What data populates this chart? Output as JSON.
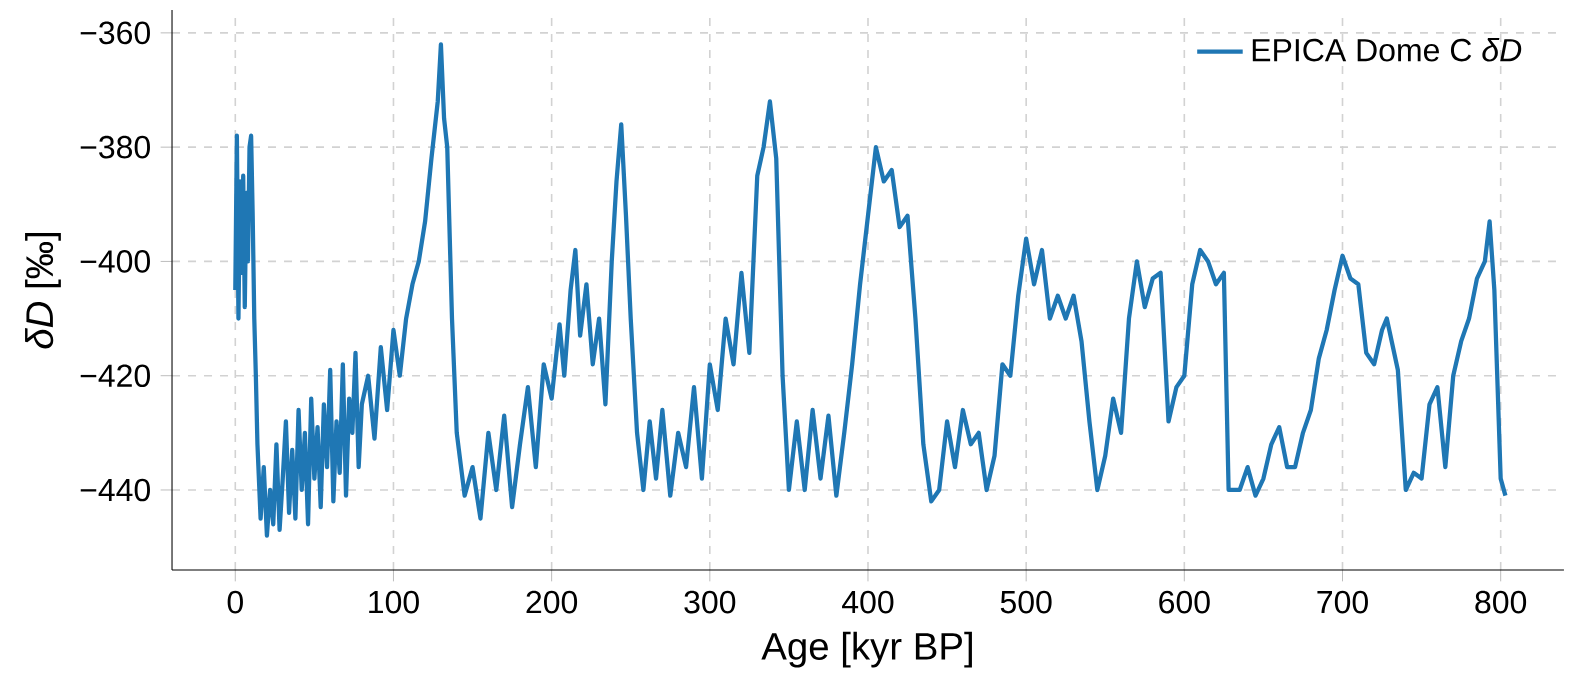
{
  "chart_data": {
    "type": "line",
    "xlabel": "Age [kyr BP]",
    "ylabel": "*δD* [‰]",
    "xlim": [
      -40,
      840
    ],
    "ylim": [
      -454,
      -356
    ],
    "xticks": [
      0,
      100,
      200,
      300,
      400,
      500,
      600,
      700,
      800
    ],
    "yticks": [
      {
        "value": -440,
        "label": "−440"
      },
      {
        "value": -420,
        "label": "−420"
      },
      {
        "value": -400,
        "label": "−400"
      },
      {
        "value": -380,
        "label": "−380"
      },
      {
        "value": -360,
        "label": "−360"
      }
    ],
    "grid": true,
    "legend": "top right",
    "line_style": "solid",
    "marker": "none",
    "series": [
      {
        "name": "EPICA Dome C *δD*",
        "color": "#1f77b4",
        "x": [
          0,
          1,
          2,
          3,
          4,
          5,
          6,
          7,
          8,
          9,
          10,
          11,
          12,
          13,
          14,
          16,
          18,
          20,
          22,
          24,
          26,
          28,
          30,
          32,
          34,
          36,
          38,
          40,
          42,
          44,
          46,
          48,
          50,
          52,
          54,
          56,
          58,
          60,
          62,
          64,
          66,
          68,
          70,
          72,
          74,
          76,
          78,
          80,
          84,
          88,
          92,
          96,
          100,
          104,
          108,
          112,
          116,
          120,
          124,
          128,
          130,
          132,
          134,
          137,
          140,
          145,
          150,
          155,
          160,
          165,
          170,
          175,
          180,
          185,
          190,
          195,
          200,
          205,
          208,
          212,
          215,
          218,
          222,
          226,
          230,
          234,
          238,
          241,
          244,
          247,
          250,
          254,
          258,
          262,
          266,
          270,
          275,
          280,
          285,
          290,
          295,
          300,
          305,
          310,
          315,
          320,
          325,
          330,
          334,
          338,
          342,
          346,
          350,
          355,
          360,
          365,
          370,
          375,
          380,
          385,
          390,
          395,
          400,
          405,
          410,
          415,
          420,
          425,
          430,
          435,
          440,
          445,
          450,
          455,
          460,
          465,
          470,
          475,
          480,
          485,
          490,
          495,
          500,
          505,
          510,
          515,
          520,
          525,
          530,
          535,
          540,
          545,
          550,
          555,
          560,
          565,
          570,
          575,
          580,
          585,
          590,
          595,
          600,
          605,
          610,
          615,
          620,
          625,
          628,
          635,
          640,
          645,
          650,
          655,
          660,
          665,
          670,
          675,
          680,
          685,
          690,
          695,
          700,
          705,
          710,
          715,
          720,
          725,
          728,
          735,
          740,
          745,
          750,
          755,
          760,
          765,
          770,
          775,
          780,
          785,
          790,
          793,
          796,
          800,
          803
        ],
        "values": [
          -405,
          -378,
          -410,
          -386,
          -402,
          -385,
          -408,
          -388,
          -400,
          -380,
          -378,
          -392,
          -410,
          -420,
          -432,
          -445,
          -436,
          -448,
          -440,
          -446,
          -432,
          -447,
          -438,
          -428,
          -444,
          -433,
          -445,
          -426,
          -440,
          -430,
          -446,
          -424,
          -438,
          -429,
          -443,
          -425,
          -436,
          -419,
          -442,
          -428,
          -437,
          -418,
          -441,
          -424,
          -430,
          -416,
          -436,
          -425,
          -420,
          -431,
          -415,
          -426,
          -412,
          -420,
          -410,
          -404,
          -400,
          -393,
          -382,
          -372,
          -362,
          -375,
          -380,
          -410,
          -430,
          -441,
          -436,
          -445,
          -430,
          -440,
          -427,
          -443,
          -432,
          -422,
          -436,
          -418,
          -424,
          -411,
          -420,
          -405,
          -398,
          -413,
          -404,
          -418,
          -410,
          -425,
          -400,
          -386,
          -376,
          -392,
          -410,
          -430,
          -440,
          -428,
          -438,
          -426,
          -441,
          -430,
          -436,
          -422,
          -438,
          -418,
          -426,
          -410,
          -418,
          -402,
          -416,
          -385,
          -380,
          -372,
          -382,
          -420,
          -440,
          -428,
          -440,
          -426,
          -438,
          -427,
          -441,
          -430,
          -418,
          -404,
          -392,
          -380,
          -386,
          -384,
          -394,
          -392,
          -410,
          -432,
          -442,
          -440,
          -428,
          -436,
          -426,
          -432,
          -430,
          -440,
          -434,
          -418,
          -420,
          -406,
          -396,
          -404,
          -398,
          -410,
          -406,
          -410,
          -406,
          -414,
          -428,
          -440,
          -434,
          -424,
          -430,
          -410,
          -400,
          -408,
          -403,
          -402,
          -428,
          -422,
          -420,
          -404,
          -398,
          -400,
          -404,
          -402,
          -440,
          -440,
          -436,
          -441,
          -438,
          -432,
          -429,
          -436,
          -436,
          -430,
          -426,
          -417,
          -412,
          -405,
          -399,
          -403,
          -404,
          -416,
          -418,
          -412,
          -410,
          -419,
          -440,
          -437,
          -438,
          -425,
          -422,
          -436,
          -420,
          -414,
          -410,
          -403,
          -400,
          -393,
          -405,
          -438,
          -441
        ]
      }
    ]
  }
}
